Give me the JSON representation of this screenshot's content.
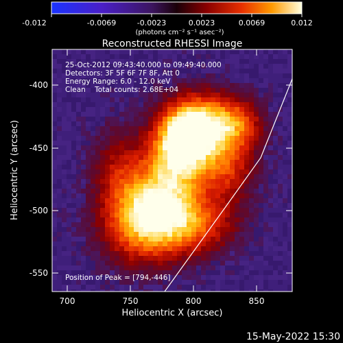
{
  "colorbar": {
    "min_value": -0.012,
    "max_value": 0.012,
    "tick_labels": [
      "-0.012",
      "-0.0069",
      "-0.0023",
      "0.0023",
      "0.0069",
      "0.012"
    ],
    "units_label": "(photons cm⁻² s⁻¹ asec⁻²)"
  },
  "plot": {
    "title": "Reconstructed RHESSI Image",
    "info_lines": [
      "25-Oct-2012 09:43:40.000 to 09:49:40.000",
      "Detectors: 3F 5F 6F 7F 8F, Att 0",
      "Energy Range: 6.0 - 12.0 keV",
      "Clean    Total counts: 2.68E+04"
    ],
    "peak_label": "Position of Peak = [794,-446]",
    "x_axis_label": "Heliocentric X (arcsec)",
    "y_axis_label": "Heliocentric Y (arcsec)",
    "x_tick_labels": [
      "700",
      "750",
      "800",
      "850"
    ],
    "y_tick_labels": [
      "-400",
      "-450",
      "-500",
      "-550"
    ],
    "x_range": [
      688,
      882
    ],
    "y_range": [
      -565,
      -368
    ],
    "peak_position": [
      794,
      -446
    ]
  },
  "footer": {
    "timestamp": "15-May-2022 15:30"
  }
}
